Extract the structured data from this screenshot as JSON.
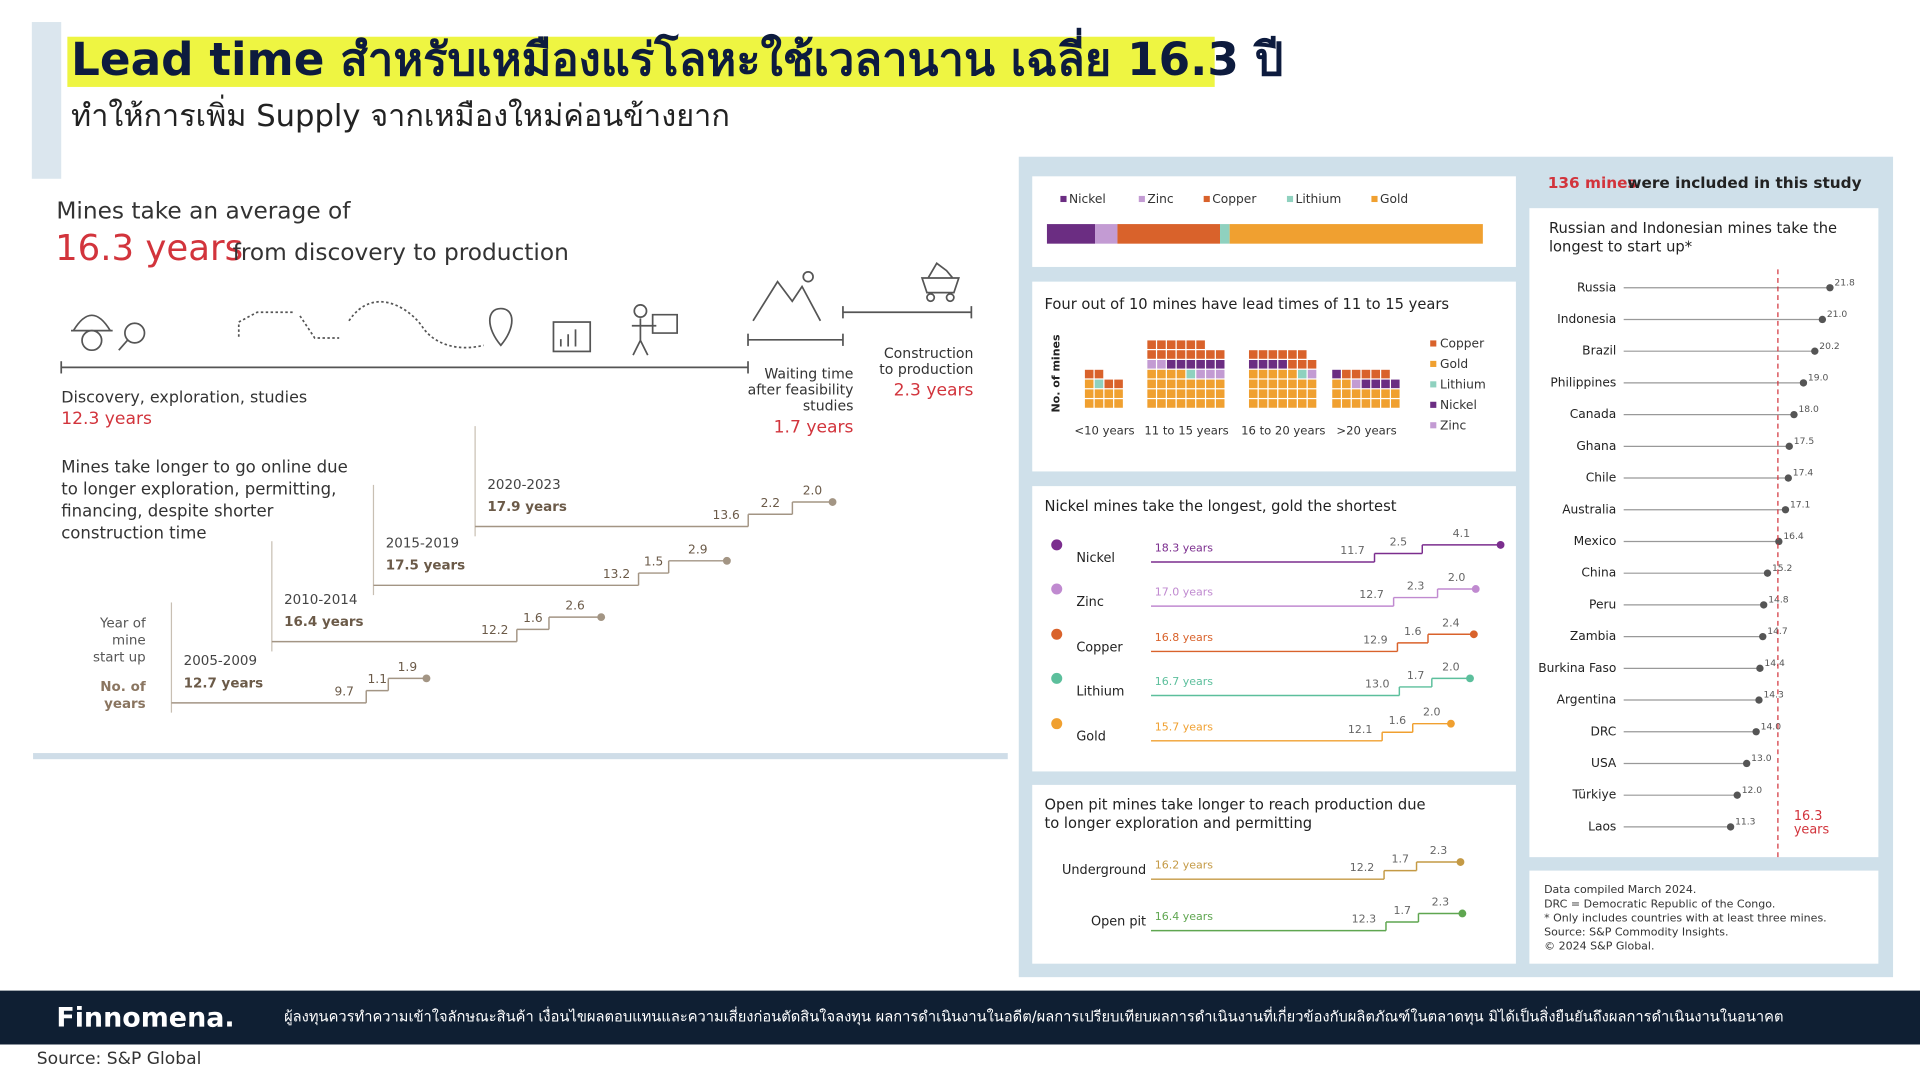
{
  "header": {
    "title": "Lead time สำหรับเหมืองแร่โลหะใช้เวลานาน เฉลี่ย 16.3 ปี",
    "subtitle": "ทำให้การเพิ่ม Supply จากเหมืองใหม่ค่อนข้างยาก"
  },
  "left_panel": {
    "intro": "Mines take an average of",
    "average": "16.3 years",
    "intro_end": "from discovery to production"
  },
  "chart_data": [
    {
      "type": "timeline",
      "phases": [
        [
          "Discovery, exploration, studies"
        ],
        [
          "Waiting time",
          "after feasibility",
          "studies"
        ],
        [
          "Construction",
          "to production"
        ]
      ],
      "values": [
        12.3,
        1.7,
        2.3
      ],
      "value_labels": [
        "12.3 years",
        "1.7 years",
        "2.3 years"
      ],
      "color": "#555555"
    },
    {
      "type": "step",
      "title_lines": [
        "Mines take longer to go online due",
        "to longer exploration, permitting,",
        "financing, despite shorter",
        "construction time"
      ],
      "axis_label_lines": [
        "Year of",
        "mine",
        "start up"
      ],
      "value_label_lines": [
        "No. of",
        "years"
      ],
      "categories": [
        "2005-2009",
        "2010-2014",
        "2015-2019",
        "2020-2023"
      ],
      "totals": [
        "12.7 years",
        "16.4 years",
        "17.5 years",
        "17.9 years"
      ],
      "values": [
        [
          9.7,
          1.1,
          1.9
        ],
        [
          12.2,
          1.6,
          2.6
        ],
        [
          13.2,
          1.5,
          2.9
        ],
        [
          13.6,
          2.2,
          2.0
        ]
      ],
      "value_labels": [
        [
          "9.7",
          "1.1",
          "1.9"
        ],
        [
          "12.2",
          "1.6",
          "2.6"
        ],
        [
          "13.2",
          "1.5",
          "2.9"
        ],
        [
          "13.6",
          "2.2",
          "2.0"
        ]
      ],
      "color": "#a39584"
    },
    {
      "type": "waffle",
      "title": "Four out of 10 mines have lead times of 11 to 15 years",
      "y_label": "No. of mines",
      "categories": [
        "<10 years",
        "11 to 15 years",
        "16 to 20 years",
        ">20 years"
      ],
      "series": [
        {
          "name": "Copper",
          "color": "#d9622b",
          "values": [
            4,
            14,
            9,
            5
          ]
        },
        {
          "name": "Gold",
          "color": "#f0a030",
          "values": [
            9,
            28,
            26,
            16
          ]
        },
        {
          "name": "Lithium",
          "color": "#8fd1bf",
          "values": [
            1,
            1,
            1,
            0
          ]
        },
        {
          "name": "Nickel",
          "color": "#6b2d82",
          "values": [
            0,
            6,
            4,
            5
          ]
        },
        {
          "name": "Zinc",
          "color": "#c39bd3",
          "values": [
            0,
            5,
            1,
            1
          ]
        }
      ]
    },
    {
      "type": "stacked-bar",
      "series": [
        {
          "name": "Nickel",
          "color": "#6b2d82",
          "values": [
            15
          ]
        },
        {
          "name": "Zinc",
          "color": "#c39bd3",
          "values": [
            7
          ]
        },
        {
          "name": "Copper",
          "color": "#d9622b",
          "values": [
            32
          ]
        },
        {
          "name": "Lithium",
          "color": "#8fd1bf",
          "values": [
            3
          ]
        },
        {
          "name": "Gold",
          "color": "#f0a030",
          "values": [
            79
          ]
        }
      ]
    },
    {
      "type": "step-rows",
      "title_lines": [
        "Nickel mines take the longest, gold the shortest"
      ],
      "categories": [
        "Nickel",
        "Zinc",
        "Copper",
        "Lithium",
        "Gold"
      ],
      "colors": [
        "#7b2d8e",
        "#c08ad0",
        "#d9622b",
        "#5cbf9c",
        "#f0a030"
      ],
      "totals": [
        "18.3 years",
        "17.0 years",
        "16.8 years",
        "16.7 years",
        "15.7 years"
      ],
      "values": [
        [
          11.7,
          2.5,
          4.1
        ],
        [
          12.7,
          2.3,
          2.0
        ],
        [
          12.9,
          1.6,
          2.4
        ],
        [
          13.0,
          1.7,
          2.0
        ],
        [
          12.1,
          1.6,
          2.0
        ]
      ],
      "value_labels": [
        [
          "11.7",
          "2.5",
          "4.1"
        ],
        [
          "12.7",
          "2.3",
          "2.0"
        ],
        [
          "12.9",
          "1.6",
          "2.4"
        ],
        [
          "13.0",
          "1.7",
          "2.0"
        ],
        [
          "12.1",
          "1.6",
          "2.0"
        ]
      ]
    },
    {
      "type": "step-rows",
      "title_lines": [
        "Open pit mines take longer to reach production due",
        "to longer exploration and permitting"
      ],
      "categories": [
        "Underground",
        "Open pit"
      ],
      "colors": [
        "#c49a45",
        "#5fa650"
      ],
      "totals": [
        "16.2 years",
        "16.4 years"
      ],
      "values": [
        [
          12.2,
          1.7,
          2.3
        ],
        [
          12.3,
          1.7,
          2.3
        ]
      ],
      "value_labels": [
        [
          "12.2",
          "1.7",
          "2.3"
        ],
        [
          "12.3",
          "1.7",
          "2.3"
        ]
      ]
    },
    {
      "type": "lollipop",
      "title_lines": [
        "Russian and Indonesian mines take the",
        "longest to start up*"
      ],
      "categories": [
        "Russia",
        "Indonesia",
        "Brazil",
        "Philippines",
        "Canada",
        "Ghana",
        "Chile",
        "Australia",
        "Mexico",
        "China",
        "Peru",
        "Zambia",
        "Burkina Faso",
        "Argentina",
        "DRC",
        "USA",
        "Türkiye",
        "Laos"
      ],
      "values": [
        21.8,
        21.0,
        20.2,
        19.0,
        18.0,
        17.5,
        17.4,
        17.1,
        16.4,
        15.2,
        14.8,
        14.7,
        14.4,
        14.3,
        14.0,
        13.0,
        12.0,
        11.3
      ],
      "value_labels": [
        "21.8",
        "21.0",
        "20.2",
        "19.0",
        "18.0",
        "17.5",
        "17.4",
        "17.1",
        "16.4",
        "15.2",
        "14.8",
        "14.7",
        "14.4",
        "14.3",
        "14.0",
        "13.0",
        "12.0",
        "11.3"
      ],
      "xlim": [
        0,
        22
      ],
      "color": "#555555",
      "reference": {
        "value": 16.3,
        "label_lines": [
          "16.3",
          "years"
        ],
        "color": "#d2343c"
      }
    }
  ],
  "study_note": {
    "count": "136 mines",
    "text": "were included in this study"
  },
  "notes": [
    "Data compiled March 2024.",
    "DRC = Democratic Republic of the Congo.",
    "* Only includes countries with at least three mines.",
    "Source: S&P Commodity Insights.",
    "© 2024 S&P Global."
  ],
  "footer": {
    "logo": "Finnomena.",
    "disclaimer": "ผู้ลงทุนควรทำความเข้าใจลักษณะสินค้า เงื่อนไขผลตอบแทนและความเสี่ยงก่อนตัดสินใจลงทุน ผลการดำเนินงานในอดีต/ผลการเปรียบเทียบผลการดำเนินงานที่เกี่ยวข้องกับผลิตภัณฑ์ในตลาดทุน มิได้เป็นสิ่งยืนยันถึงผลการดำเนินงานในอนาคต"
  },
  "source": "Source: S&P Global"
}
